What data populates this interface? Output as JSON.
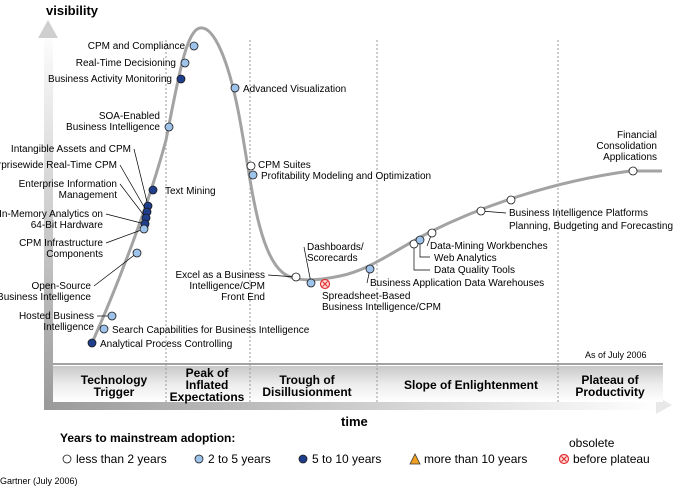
{
  "axes": {
    "y_label": "visibility",
    "x_label": "time"
  },
  "as_of": "As of July 2006",
  "source": "Gartner (July 2006)",
  "phases": [
    {
      "id": "trigger",
      "lines": [
        "Technology",
        "Trigger"
      ]
    },
    {
      "id": "peak",
      "lines": [
        "Peak of",
        "Inflated",
        "Expectations"
      ]
    },
    {
      "id": "trough",
      "lines": [
        "Trough of",
        "Disillusionment"
      ]
    },
    {
      "id": "slope",
      "lines": [
        "Slope of Enlightenment"
      ]
    },
    {
      "id": "plateau",
      "lines": [
        "Plateau of",
        "Productivity"
      ]
    }
  ],
  "legend": {
    "title": "Years to mainstream adoption:",
    "items": [
      {
        "key": "lt2",
        "label": "less than 2 years",
        "color": "#ffffff"
      },
      {
        "key": "2to5",
        "label": "2 to 5 years",
        "color": "#9ec3ea"
      },
      {
        "key": "5to10",
        "label": "5 to 10 years",
        "color": "#1f3e8c"
      },
      {
        "key": "gt10",
        "label": "more than 10 years",
        "color": "#f0a020"
      },
      {
        "key": "obsolete",
        "label": [
          "obsolete",
          "before plateau"
        ],
        "color": "#e03030"
      }
    ]
  },
  "technologies": [
    {
      "name": [
        "CPM and Compliance"
      ],
      "cat": "2to5"
    },
    {
      "name": [
        "Real-Time Decisioning"
      ],
      "cat": "2to5"
    },
    {
      "name": [
        "Business Activity Monitoring"
      ],
      "cat": "5to10"
    },
    {
      "name": [
        "Advanced Visualization"
      ],
      "cat": "2to5"
    },
    {
      "name": [
        "SOA-Enabled",
        "Business Intelligence"
      ],
      "cat": "2to5"
    },
    {
      "name": [
        "CPM Suites"
      ],
      "cat": "lt2"
    },
    {
      "name": [
        "Profitability Modeling and Optimization"
      ],
      "cat": "2to5"
    },
    {
      "name": [
        "Intangible Assets and CPM"
      ],
      "cat": "5to10"
    },
    {
      "name": [
        "Enterprisewide Real-Time CPM"
      ],
      "cat": "5to10"
    },
    {
      "name": [
        "Enterprise Information",
        "Management"
      ],
      "cat": "5to10"
    },
    {
      "name": [
        "Text Mining"
      ],
      "cat": "5to10"
    },
    {
      "name": [
        "In-Memory Analytics on",
        "64-Bit Hardware"
      ],
      "cat": "5to10"
    },
    {
      "name": [
        "CPM Infrastructure",
        "Components"
      ],
      "cat": "2to5"
    },
    {
      "name": [
        "Open-Source",
        "Business Intelligence"
      ],
      "cat": "2to5"
    },
    {
      "name": [
        "Hosted Business",
        "Intelligence"
      ],
      "cat": "2to5"
    },
    {
      "name": [
        "Search Capabilities for Business Intelligence"
      ],
      "cat": "2to5"
    },
    {
      "name": [
        "Analytical Process Controlling"
      ],
      "cat": "5to10"
    },
    {
      "name": [
        "Excel as a Business",
        "Intelligence/CPM",
        "Front End"
      ],
      "cat": "lt2"
    },
    {
      "name": [
        "Dashboards/",
        "Scorecards"
      ],
      "cat": "2to5"
    },
    {
      "name": [
        "Spreadsheet-Based",
        "Business Intelligence/CPM"
      ],
      "cat": "obsolete"
    },
    {
      "name": [
        "Business Application Data Warehouses"
      ],
      "cat": "2to5"
    },
    {
      "name": [
        "Data Quality Tools"
      ],
      "cat": "lt2"
    },
    {
      "name": [
        "Web Analytics"
      ],
      "cat": "2to5"
    },
    {
      "name": [
        "Data-Mining Workbenches"
      ],
      "cat": "lt2"
    },
    {
      "name": [
        "Business Intelligence Platforms"
      ],
      "cat": "lt2"
    },
    {
      "name": [
        "Planning, Budgeting and Forecasting"
      ],
      "cat": "lt2"
    },
    {
      "name": [
        "Financial",
        "Consolidation",
        "Applications"
      ],
      "cat": "lt2"
    }
  ]
}
